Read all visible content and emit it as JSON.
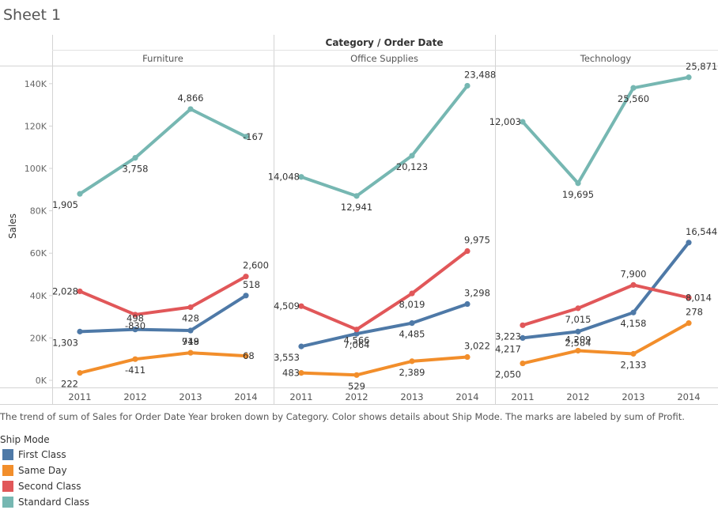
{
  "sheet_title": "Sheet 1",
  "caption": "The trend of sum of Sales for Order Date Year broken down by Category.  Color shows details about Ship Mode.  The marks are labeled by sum of Profit.",
  "legend": {
    "title": "Ship Mode",
    "items": [
      {
        "label": "First Class",
        "color": "#4e79a7"
      },
      {
        "label": "Same Day",
        "color": "#f28e2b"
      },
      {
        "label": "Second Class",
        "color": "#e15759"
      },
      {
        "label": "Standard Class",
        "color": "#76b7b2"
      }
    ]
  },
  "chart_data": {
    "type": "line",
    "header": "Category / Order Date",
    "ylabel": "Sales",
    "ylim": [
      0,
      150000
    ],
    "yticks": [
      {
        "value": 0,
        "label": "0K"
      },
      {
        "value": 20000,
        "label": "20K"
      },
      {
        "value": 40000,
        "label": "40K"
      },
      {
        "value": 60000,
        "label": "60K"
      },
      {
        "value": 80000,
        "label": "80K"
      },
      {
        "value": 100000,
        "label": "100K"
      },
      {
        "value": 120000,
        "label": "120K"
      },
      {
        "value": 140000,
        "label": "140K"
      }
    ],
    "x": [
      "2011",
      "2012",
      "2013",
      "2014"
    ],
    "grid": false,
    "panels": [
      {
        "category": "Furniture",
        "series": [
          {
            "name": "First Class",
            "color": "#4e79a7",
            "sales": [
              23000,
              24000,
              23500,
              40000
            ],
            "labels": [
              "1,303",
              "498",
              "748",
              "518"
            ]
          },
          {
            "name": "Same Day",
            "color": "#f28e2b",
            "sales": [
              3500,
              10000,
              13000,
              11500
            ],
            "labels": [
              "222",
              "-411",
              "919",
              "68"
            ]
          },
          {
            "name": "Second Class",
            "color": "#e15759",
            "sales": [
              42000,
              31000,
              34500,
              49000
            ],
            "labels": [
              "2,028",
              "-830",
              "428",
              "2,600"
            ]
          },
          {
            "name": "Standard Class",
            "color": "#76b7b2",
            "sales": [
              88000,
              105000,
              128000,
              115000
            ],
            "labels": [
              "1,905",
              "3,758",
              "4,866",
              "-167"
            ]
          }
        ]
      },
      {
        "category": "Office Supplies",
        "series": [
          {
            "name": "First Class",
            "color": "#4e79a7",
            "sales": [
              16000,
              22000,
              27000,
              36000
            ],
            "labels": [
              "3,553",
              "7,064",
              "4,485",
              "3,298"
            ]
          },
          {
            "name": "Same Day",
            "color": "#f28e2b",
            "sales": [
              3500,
              2500,
              9000,
              11000
            ],
            "labels": [
              "483",
              "529",
              "2,389",
              "3,022"
            ]
          },
          {
            "name": "Second Class",
            "color": "#e15759",
            "sales": [
              35000,
              24000,
              41000,
              61000
            ],
            "labels": [
              "4,509",
              "4,566",
              "8,019",
              "9,975"
            ]
          },
          {
            "name": "Standard Class",
            "color": "#76b7b2",
            "sales": [
              96000,
              87000,
              106000,
              139000
            ],
            "labels": [
              "14,048",
              "12,941",
              "20,123",
              "23,488"
            ]
          }
        ]
      },
      {
        "category": "Technology",
        "series": [
          {
            "name": "First Class",
            "color": "#4e79a7",
            "sales": [
              20000,
              23000,
              32000,
              65000
            ],
            "labels": [
              "4,217",
              "2,584",
              "4,158",
              "16,544"
            ]
          },
          {
            "name": "Same Day",
            "color": "#f28e2b",
            "sales": [
              8000,
              14000,
              12500,
              27000
            ],
            "labels": [
              "2,050",
              "4,209",
              "2,133",
              "278"
            ]
          },
          {
            "name": "Second Class",
            "color": "#e15759",
            "sales": [
              26000,
              34000,
              45000,
              39000
            ],
            "labels": [
              "3,223",
              "7,015",
              "7,900",
              "8,014"
            ]
          },
          {
            "name": "Standard Class",
            "color": "#76b7b2",
            "sales": [
              122000,
              93000,
              138000,
              143000
            ],
            "labels": [
              "12,003",
              "19,695",
              "25,560",
              "25,871"
            ]
          }
        ]
      }
    ]
  }
}
